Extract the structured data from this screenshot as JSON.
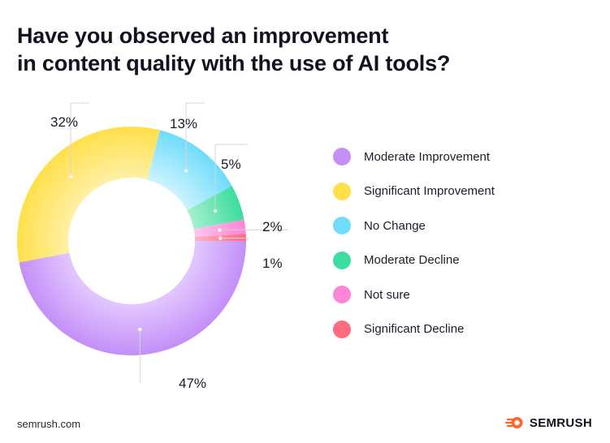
{
  "title": {
    "line1": "Have you observed an improvement",
    "line2": "in content quality with the use of AI tools?"
  },
  "chart_data": {
    "type": "pie",
    "variant": "donut",
    "title": "Have you observed an improvement in content quality with the use of AI tools?",
    "unit": "%",
    "legend_position": "right",
    "categories": [
      "Moderate Improvement",
      "Significant Improvement",
      "No Change",
      "Moderate Decline",
      "Not sure",
      "Significant Decline"
    ],
    "values": [
      47,
      32,
      13,
      5,
      2,
      1
    ],
    "data_labels": [
      "47%",
      "32%",
      "13%",
      "5%",
      "2%",
      "1%"
    ],
    "colors": [
      "#c48ff7",
      "#ffe04a",
      "#6fdcfa",
      "#3ddc9f",
      "#ff85d6",
      "#ff6b7f"
    ],
    "gradient_inner_colors": [
      "#e2c8ff",
      "#fff0a6",
      "#cdf3ff",
      "#a4f0cd",
      "#ffc6ee",
      "#ffb3bf"
    ]
  },
  "footer": {
    "site": "semrush.com",
    "brand": "SEMRUSH",
    "brand_color": "#ff642d"
  }
}
